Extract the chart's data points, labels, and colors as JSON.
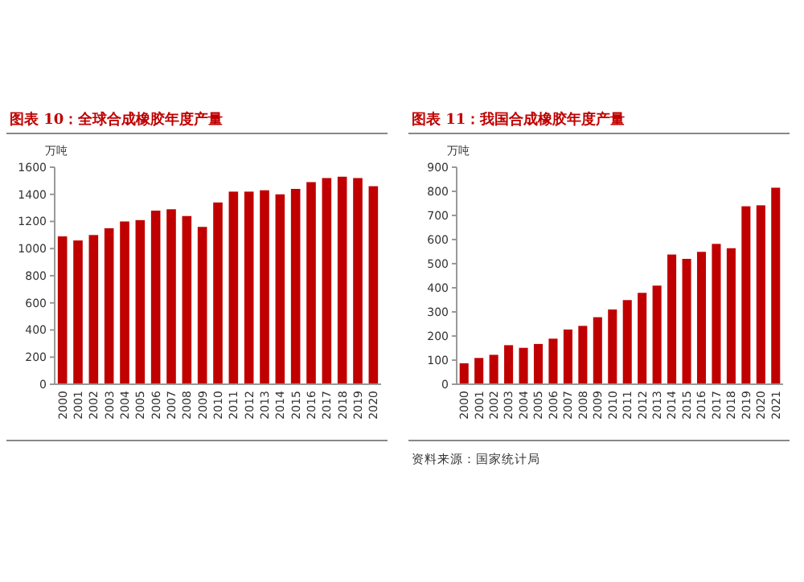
{
  "chart_data": [
    {
      "type": "bar",
      "title": "图表 10：全球合成橡胶年度产量",
      "ylabel": "万吨",
      "categories": [
        "2000",
        "2001",
        "2002",
        "2003",
        "2004",
        "2005",
        "2006",
        "2007",
        "2008",
        "2009",
        "2010",
        "2011",
        "2012",
        "2013",
        "2014",
        "2015",
        "2016",
        "2017",
        "2018",
        "2019",
        "2020"
      ],
      "values": [
        1090,
        1060,
        1100,
        1150,
        1200,
        1210,
        1280,
        1290,
        1240,
        1160,
        1340,
        1420,
        1420,
        1430,
        1400,
        1440,
        1490,
        1520,
        1530,
        1520,
        1460
      ],
      "color": "#c00000",
      "ylim": [
        0,
        1600
      ],
      "yticks": [
        0,
        200,
        400,
        600,
        800,
        1000,
        1200,
        1400,
        1600
      ],
      "grid": false
    },
    {
      "type": "bar",
      "title": "图表 11：我国合成橡胶年度产量",
      "ylabel": "万吨",
      "categories": [
        "2000",
        "2001",
        "2002",
        "2003",
        "2004",
        "2005",
        "2006",
        "2007",
        "2008",
        "2009",
        "2010",
        "2011",
        "2012",
        "2013",
        "2014",
        "2015",
        "2016",
        "2017",
        "2018",
        "2019",
        "2020",
        "2021"
      ],
      "values": [
        87,
        109,
        122,
        162,
        151,
        167,
        189,
        227,
        242,
        278,
        310,
        349,
        379,
        409,
        538,
        520,
        549,
        582,
        564,
        738,
        742,
        815
      ],
      "color": "#c00000",
      "ylim": [
        0,
        900
      ],
      "yticks": [
        0,
        100,
        200,
        300,
        400,
        500,
        600,
        700,
        800,
        900
      ],
      "grid": false,
      "annotations": [
        "资料来源：国家统计局"
      ]
    }
  ]
}
